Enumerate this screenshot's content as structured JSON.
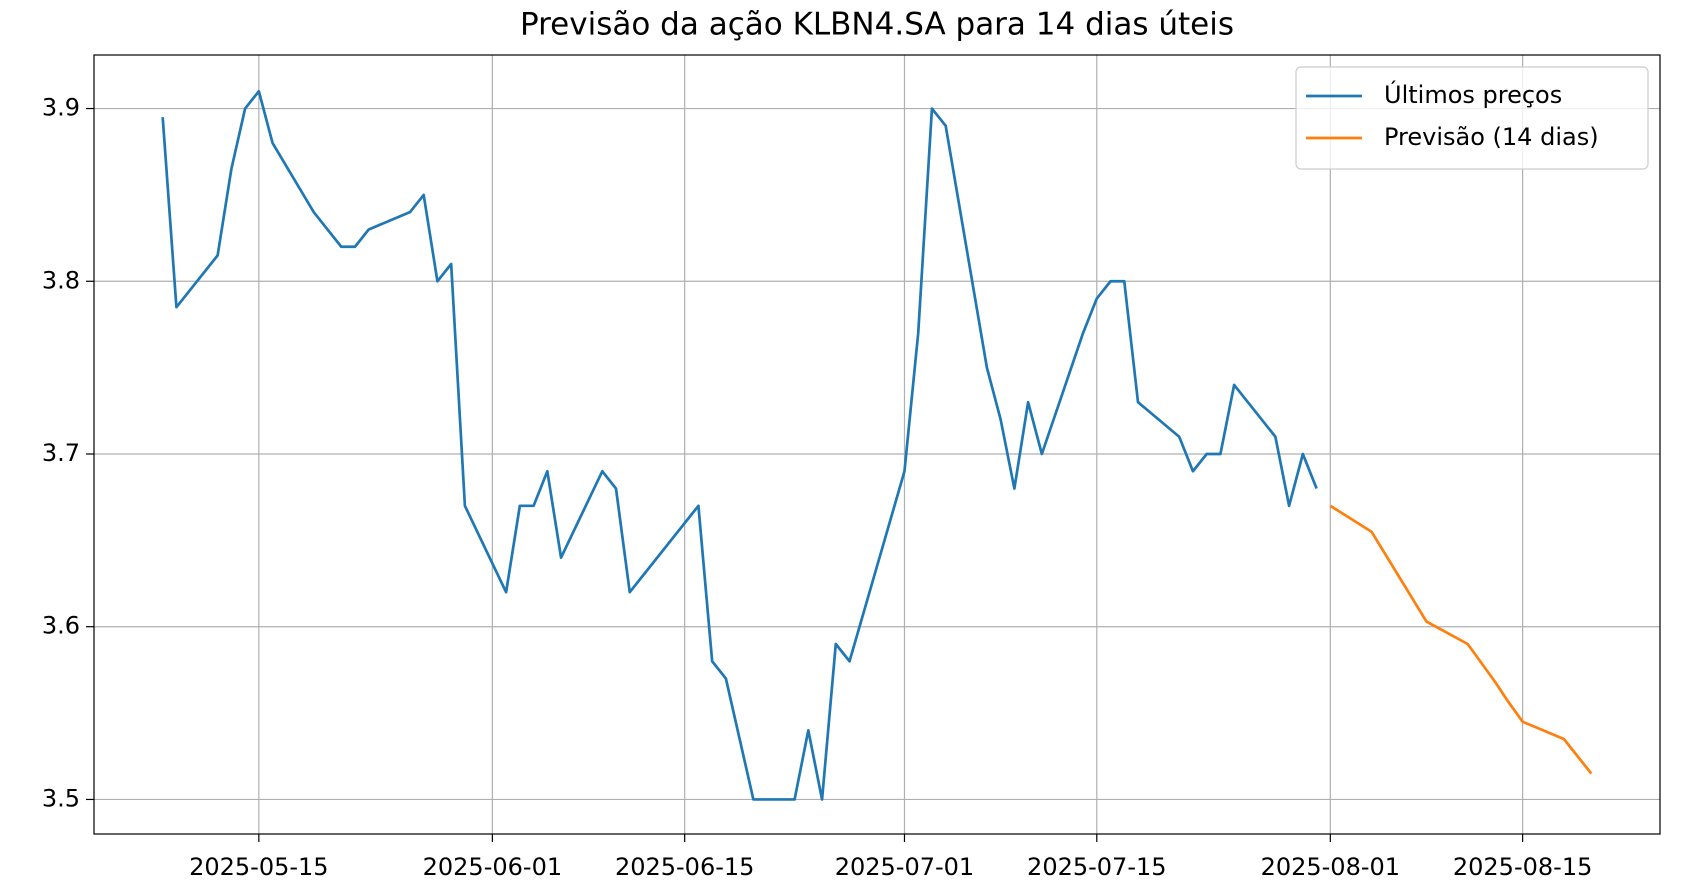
{
  "chart_data": {
    "type": "line",
    "title": "Previsão da ação KLBN4.SA para 14 dias úteis",
    "series": [
      {
        "name": "Últimos preços",
        "color": "#1f77b4",
        "x": [
          "2025-05-08",
          "2025-05-09",
          "2025-05-12",
          "2025-05-13",
          "2025-05-14",
          "2025-05-15",
          "2025-05-16",
          "2025-05-19",
          "2025-05-21",
          "2025-05-22",
          "2025-05-23",
          "2025-05-26",
          "2025-05-27",
          "2025-05-28",
          "2025-05-29",
          "2025-05-30",
          "2025-06-02",
          "2025-06-03",
          "2025-06-04",
          "2025-06-05",
          "2025-06-06",
          "2025-06-09",
          "2025-06-10",
          "2025-06-11",
          "2025-06-16",
          "2025-06-17",
          "2025-06-18",
          "2025-06-20",
          "2025-06-23",
          "2025-06-24",
          "2025-06-25",
          "2025-06-26",
          "2025-06-27",
          "2025-07-01",
          "2025-07-02",
          "2025-07-03",
          "2025-07-04",
          "2025-07-07",
          "2025-07-08",
          "2025-07-09",
          "2025-07-10",
          "2025-07-11",
          "2025-07-14",
          "2025-07-15",
          "2025-07-16",
          "2025-07-17",
          "2025-07-18",
          "2025-07-21",
          "2025-07-22",
          "2025-07-23",
          "2025-07-24",
          "2025-07-25",
          "2025-07-28",
          "2025-07-29",
          "2025-07-30",
          "2025-07-31"
        ],
        "values": [
          3.895,
          3.785,
          3.815,
          3.865,
          3.9,
          3.91,
          3.88,
          3.84,
          3.82,
          3.82,
          3.83,
          3.84,
          3.85,
          3.8,
          3.81,
          3.67,
          3.62,
          3.67,
          3.67,
          3.69,
          3.64,
          3.69,
          3.68,
          3.62,
          3.67,
          3.58,
          3.57,
          3.5,
          3.5,
          3.54,
          3.5,
          3.59,
          3.58,
          3.69,
          3.77,
          3.9,
          3.89,
          3.75,
          3.72,
          3.68,
          3.73,
          3.7,
          3.77,
          3.79,
          3.8,
          3.8,
          3.73,
          3.71,
          3.69,
          3.7,
          3.7,
          3.74,
          3.71,
          3.67,
          3.7,
          3.68
        ]
      },
      {
        "name": "Previsão (14 dias)",
        "color": "#ff7f0e",
        "x": [
          "2025-08-01",
          "2025-08-04",
          "2025-08-05",
          "2025-08-06",
          "2025-08-07",
          "2025-08-08",
          "2025-08-11",
          "2025-08-12",
          "2025-08-13",
          "2025-08-14",
          "2025-08-15",
          "2025-08-18",
          "2025-08-19",
          "2025-08-20"
        ],
        "values": [
          3.67,
          3.655,
          3.642,
          3.629,
          3.616,
          3.603,
          3.59,
          3.579,
          3.568,
          3.556,
          3.545,
          3.535,
          3.525,
          3.515
        ]
      }
    ],
    "xlim": [
      "2025-05-03",
      "2025-08-25"
    ],
    "xticks": [
      "2025-05-15",
      "2025-06-01",
      "2025-06-15",
      "2025-07-01",
      "2025-07-15",
      "2025-08-01",
      "2025-08-15"
    ],
    "ylim": [
      3.48,
      3.931
    ],
    "yticks": [
      3.5,
      3.6,
      3.7,
      3.8,
      3.9
    ],
    "grid": true,
    "legend": "upper right"
  }
}
